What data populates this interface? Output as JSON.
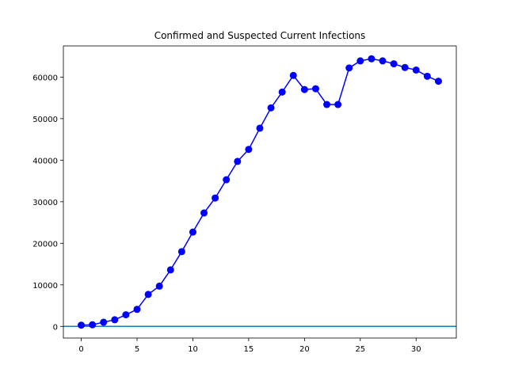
{
  "chart_data": {
    "type": "line",
    "title": "Confirmed and Suspected Current Infections",
    "xlabel": "",
    "ylabel": "",
    "xlim": [
      -1.6,
      33.6
    ],
    "ylim": [
      -2800,
      67500
    ],
    "xticks": [
      0,
      5,
      10,
      15,
      20,
      25,
      30
    ],
    "yticks": [
      0,
      10000,
      20000,
      30000,
      40000,
      50000,
      60000
    ],
    "grid": false,
    "legend": "none",
    "hline": {
      "y": 0,
      "color": "#1f77b4"
    },
    "series": [
      {
        "color": "#0000ff",
        "marker": "circle",
        "x": [
          0,
          1,
          2,
          3,
          4,
          5,
          6,
          7,
          8,
          9,
          10,
          11,
          12,
          13,
          14,
          15,
          16,
          17,
          18,
          19,
          20,
          21,
          22,
          23,
          24,
          25,
          26,
          27,
          28,
          29,
          30,
          31,
          32
        ],
        "values": [
          300,
          400,
          1000,
          1600,
          2800,
          4100,
          7700,
          9700,
          13600,
          18000,
          22700,
          27300,
          30900,
          35300,
          39700,
          42600,
          47700,
          52600,
          56400,
          60400,
          57000,
          57200,
          53400,
          53400,
          62200,
          63900,
          64400,
          63900,
          63200,
          62300,
          61700,
          60200,
          59000
        ]
      }
    ]
  }
}
